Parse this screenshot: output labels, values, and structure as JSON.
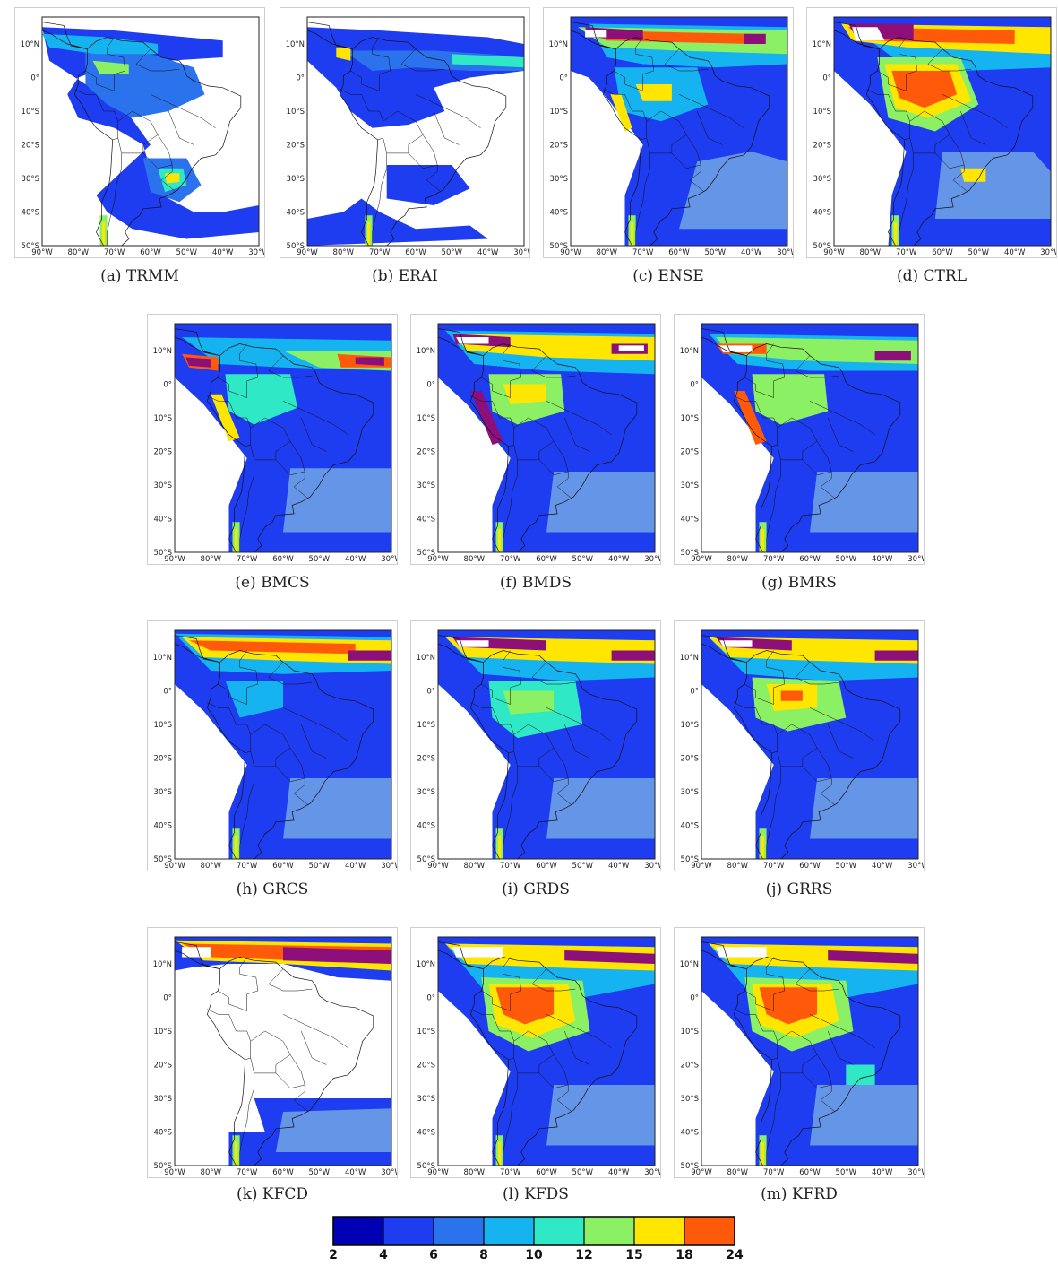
{
  "lon_ticks": [
    "90°W",
    "80°W",
    "70°W",
    "60°W",
    "50°W",
    "40°W",
    "30°W"
  ],
  "lat_ticks": [
    "10°N",
    "0°",
    "10°S",
    "20°S",
    "30°S",
    "40°S",
    "50°S"
  ],
  "panels": [
    {
      "id": "TRMM",
      "caption": "(a) TRMM"
    },
    {
      "id": "ERAI",
      "caption": "(b) ERAI"
    },
    {
      "id": "ENSE",
      "caption": "(c) ENSE"
    },
    {
      "id": "CTRL",
      "caption": "(d) CTRL"
    },
    {
      "id": "BMCS",
      "caption": "(e) BMCS"
    },
    {
      "id": "BMDS",
      "caption": "(f) BMDS"
    },
    {
      "id": "BMRS",
      "caption": "(g) BMRS"
    },
    {
      "id": "GRCS",
      "caption": "(h) GRCS"
    },
    {
      "id": "GRDS",
      "caption": "(i) GRDS"
    },
    {
      "id": "GRRS",
      "caption": "(j) GRRS"
    },
    {
      "id": "KFCD",
      "caption": "(k) KFCD"
    },
    {
      "id": "KFDS",
      "caption": "(l) KFDS"
    },
    {
      "id": "KFRD",
      "caption": "(m) KFRD"
    }
  ],
  "colorbar": {
    "labels": [
      "2",
      "4",
      "6",
      "8",
      "10",
      "12",
      "15",
      "18",
      "24"
    ],
    "colors": [
      "#0000b4",
      "#1e3cf0",
      "#2b73ec",
      "#15b4f0",
      "#2ee8c6",
      "#8cf064",
      "#ffe600",
      "#ff5a0a"
    ],
    "extra_colors": {
      "very_high": "#8c0f7a",
      "max": "#ffffff",
      "low_mid": "#6495e6"
    }
  }
}
